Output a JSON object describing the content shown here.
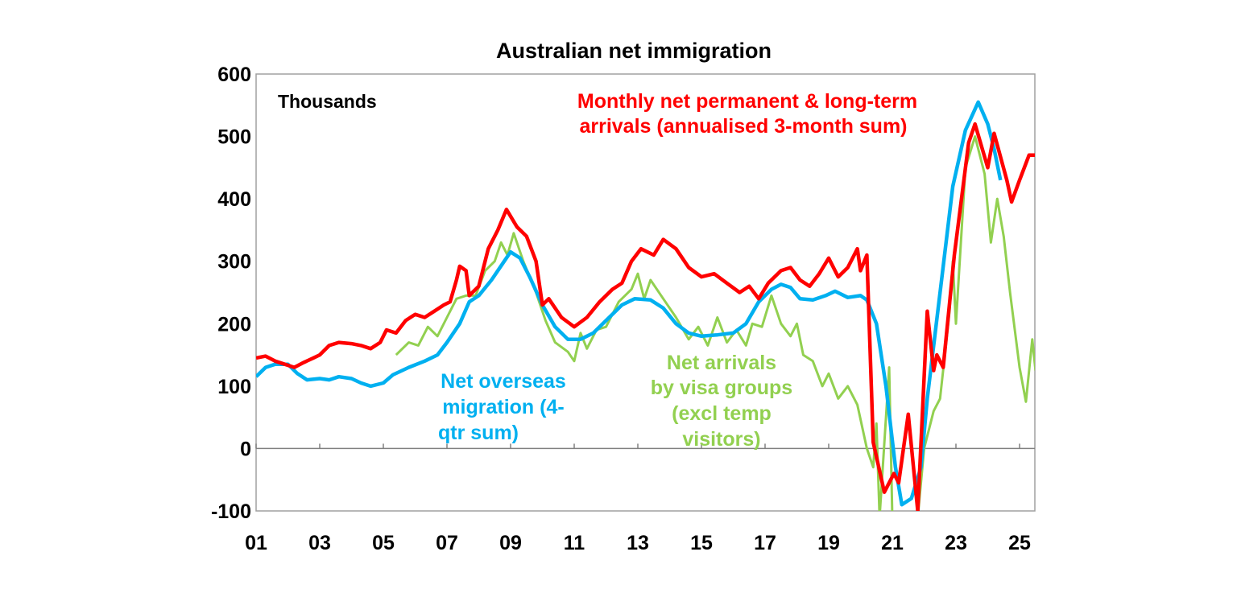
{
  "chart_data": {
    "type": "line",
    "title": "Australian net immigration",
    "ylabel": "Thousands",
    "xlabel": "",
    "ylim": [
      -100,
      600
    ],
    "xlim": [
      2001,
      2025.5
    ],
    "yticks": [
      "600",
      "500",
      "400",
      "300",
      "200",
      "100",
      "0",
      "-100"
    ],
    "ytick_values": [
      600,
      500,
      400,
      300,
      200,
      100,
      0,
      -100
    ],
    "xticks": [
      "01",
      "03",
      "05",
      "07",
      "09",
      "11",
      "13",
      "15",
      "17",
      "19",
      "21",
      "23",
      "25"
    ],
    "xtick_values": [
      2001,
      2003,
      2005,
      2007,
      2009,
      2011,
      2013,
      2015,
      2017,
      2019,
      2021,
      2023,
      2025
    ],
    "grid": false,
    "series": [
      {
        "name": "Monthly net permanent & long-term arrivals (annualised 3-month sum)",
        "color": "#ff0000",
        "x": [
          2001.0,
          2001.3,
          2001.6,
          2001.9,
          2002.2,
          2002.5,
          2002.8,
          2003.0,
          2003.3,
          2003.6,
          2004.0,
          2004.3,
          2004.6,
          2004.9,
          2005.1,
          2005.4,
          2005.7,
          2006.0,
          2006.3,
          2006.6,
          2006.9,
          2007.1,
          2007.3,
          2007.4,
          2007.6,
          2007.7,
          2008.0,
          2008.3,
          2008.6,
          2008.87,
          2009.2,
          2009.5,
          2009.8,
          2010.0,
          2010.2,
          2010.6,
          2011.0,
          2011.4,
          2011.8,
          2012.2,
          2012.5,
          2012.8,
          2013.1,
          2013.5,
          2013.8,
          2014.2,
          2014.6,
          2015.0,
          2015.4,
          2015.8,
          2016.2,
          2016.5,
          2016.8,
          2017.1,
          2017.5,
          2017.8,
          2018.1,
          2018.4,
          2018.7,
          2019.0,
          2019.3,
          2019.6,
          2019.9,
          2020.0,
          2020.2,
          2020.4,
          2020.75,
          2021.05,
          2021.2,
          2021.5,
          2021.8,
          2022.1,
          2022.3,
          2022.4,
          2022.6,
          2022.95,
          2023.4,
          2023.6,
          2024.0,
          2024.2,
          2024.6,
          2024.75,
          2025.0,
          2025.3,
          2025.5
        ],
        "values": [
          145,
          148,
          140,
          135,
          130,
          138,
          145,
          150,
          165,
          170,
          168,
          165,
          160,
          170,
          190,
          185,
          205,
          215,
          210,
          220,
          230,
          235,
          270,
          292,
          285,
          245,
          260,
          320,
          350,
          383,
          355,
          340,
          300,
          230,
          240,
          210,
          195,
          210,
          235,
          255,
          265,
          300,
          320,
          310,
          335,
          320,
          290,
          275,
          280,
          265,
          250,
          260,
          240,
          265,
          285,
          290,
          270,
          260,
          280,
          305,
          275,
          290,
          320,
          285,
          310,
          10,
          -70,
          -40,
          -55,
          55,
          -100,
          220,
          125,
          150,
          130,
          310,
          490,
          520,
          450,
          505,
          430,
          395,
          430,
          470,
          470
        ]
      },
      {
        "name": "Net overseas migration (4-qtr sum)",
        "color": "#00b0f0",
        "x": [
          2001.0,
          2001.3,
          2001.6,
          2002.0,
          2002.3,
          2002.6,
          2003.0,
          2003.3,
          2003.6,
          2004.0,
          2004.3,
          2004.6,
          2005.0,
          2005.3,
          2005.8,
          2006.3,
          2006.7,
          2007.0,
          2007.4,
          2007.7,
          2008.0,
          2008.4,
          2008.8,
          2009.0,
          2009.3,
          2009.6,
          2010.0,
          2010.4,
          2010.8,
          2011.2,
          2011.6,
          2012.0,
          2012.5,
          2012.9,
          2013.4,
          2013.8,
          2014.2,
          2014.6,
          2015.0,
          2015.5,
          2016.0,
          2016.4,
          2016.8,
          2017.2,
          2017.5,
          2017.8,
          2018.1,
          2018.5,
          2018.9,
          2019.2,
          2019.6,
          2020.0,
          2020.2,
          2020.5,
          2020.8,
          2021.1,
          2021.3,
          2021.6,
          2021.9,
          2022.1,
          2022.5,
          2022.9,
          2023.3,
          2023.7,
          2024.0,
          2024.2,
          2024.4
        ],
        "values": [
          115,
          130,
          135,
          135,
          120,
          110,
          112,
          110,
          115,
          112,
          105,
          100,
          105,
          118,
          130,
          140,
          150,
          170,
          200,
          235,
          245,
          270,
          300,
          315,
          305,
          275,
          230,
          195,
          175,
          175,
          185,
          205,
          230,
          240,
          238,
          225,
          200,
          185,
          180,
          182,
          185,
          200,
          235,
          255,
          263,
          258,
          240,
          238,
          245,
          252,
          242,
          245,
          238,
          200,
          100,
          -30,
          -90,
          -80,
          -30,
          80,
          250,
          420,
          510,
          555,
          520,
          480,
          430
        ]
      },
      {
        "name": "Net arrivals by visa groups (excl temp visitors)",
        "color": "#92d050",
        "x": [
          2005.4,
          2005.8,
          2006.1,
          2006.4,
          2006.7,
          2007.0,
          2007.3,
          2007.6,
          2007.9,
          2008.2,
          2008.5,
          2008.7,
          2008.9,
          2009.1,
          2009.4,
          2009.8,
          2010.1,
          2010.4,
          2010.8,
          2011.0,
          2011.2,
          2011.4,
          2011.7,
          2012.0,
          2012.4,
          2012.8,
          2013.0,
          2013.2,
          2013.4,
          2013.8,
          2014.2,
          2014.6,
          2014.9,
          2015.2,
          2015.5,
          2015.8,
          2016.1,
          2016.4,
          2016.6,
          2016.9,
          2017.2,
          2017.5,
          2017.8,
          2018.0,
          2018.2,
          2018.5,
          2018.8,
          2019.0,
          2019.3,
          2019.6,
          2019.9,
          2020.2,
          2020.4,
          2020.5,
          2020.6,
          2020.9,
          2021.0,
          2021.5,
          2021.8,
          2022.0,
          2022.3,
          2022.5,
          2022.8,
          2022.9,
          2023.0,
          2023.3,
          2023.6,
          2023.9,
          2024.1,
          2024.3,
          2024.5,
          2024.7,
          2025.0,
          2025.2,
          2025.4,
          2025.5
        ],
        "values": [
          150,
          170,
          165,
          195,
          180,
          210,
          240,
          245,
          245,
          285,
          300,
          330,
          310,
          345,
          300,
          250,
          205,
          170,
          155,
          140,
          185,
          160,
          190,
          195,
          235,
          255,
          280,
          240,
          270,
          240,
          210,
          175,
          195,
          165,
          210,
          170,
          190,
          165,
          200,
          195,
          245,
          200,
          180,
          200,
          150,
          140,
          100,
          120,
          80,
          100,
          70,
          0,
          -30,
          40,
          -110,
          130,
          -110,
          -110,
          -110,
          0,
          60,
          80,
          220,
          300,
          200,
          450,
          500,
          440,
          330,
          400,
          340,
          250,
          130,
          75,
          175,
          125
        ]
      }
    ],
    "annotations": {
      "red_label_line1": "Monthly net permanent & long-term",
      "red_label_line2": "arrivals (annualised 3-month sum)",
      "blue_label_line1": "Net overseas",
      "blue_label_line2": "migration (4-",
      "blue_label_line3": "qtr sum)",
      "green_label_line1": "Net arrivals",
      "green_label_line2": "by visa groups",
      "green_label_line3": "(excl temp",
      "green_label_line4": "visitors)"
    }
  }
}
